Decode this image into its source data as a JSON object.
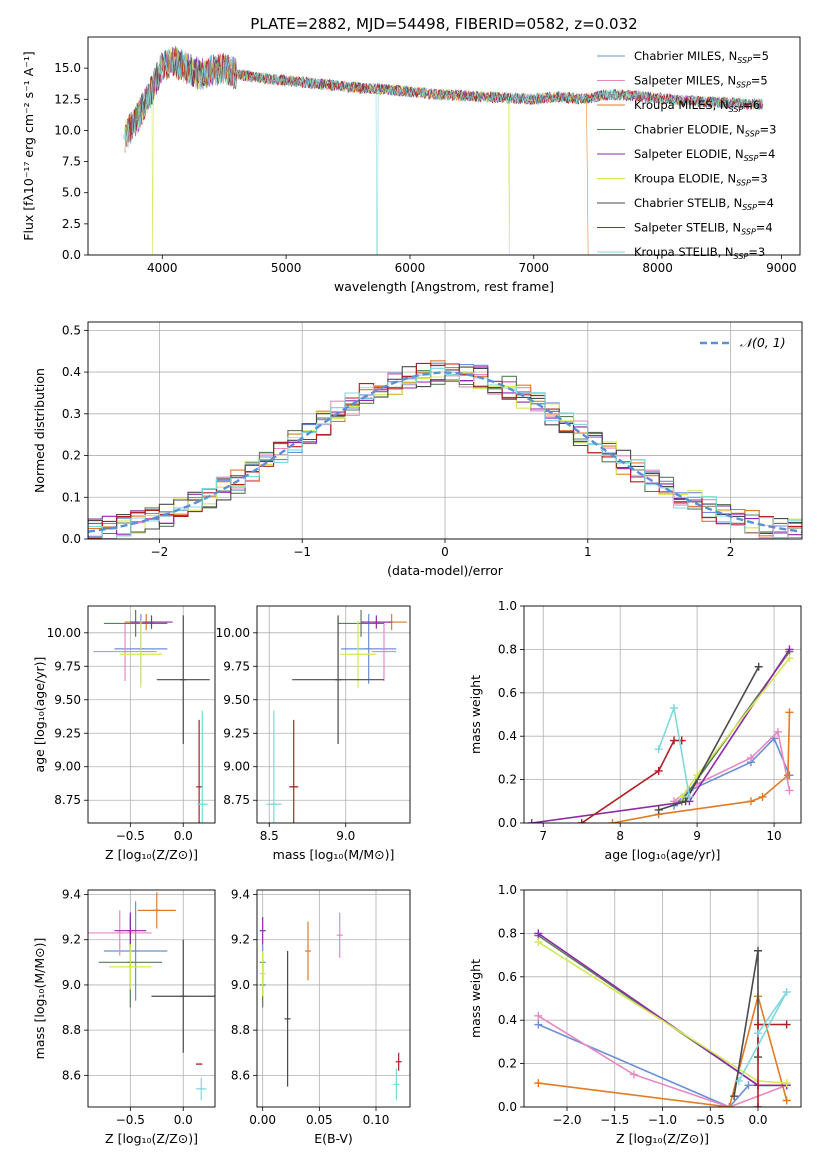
{
  "figure_title": "PLATE=2882, MJD=54498, FIBERID=0582, z=0.032",
  "models": [
    {
      "name": "Chabrier MILES",
      "nssp": "5",
      "color": "#6a8fd8"
    },
    {
      "name": "Salpeter MILES",
      "nssp": "5",
      "color": "#e689c0"
    },
    {
      "name": "Kroupa MILES",
      "nssp": "6",
      "color": "#e07b28"
    },
    {
      "name": "Chabrier ELODIE",
      "nssp": "3",
      "color": "#5a7d5a"
    },
    {
      "name": "Salpeter ELODIE",
      "nssp": "4",
      "color": "#8e2aa8"
    },
    {
      "name": "Kroupa ELODIE",
      "nssp": "3",
      "color": "#d4e85a"
    },
    {
      "name": "Chabrier STELIB",
      "nssp": "4",
      "color": "#4a4a4a"
    },
    {
      "name": "Salpeter STELIB",
      "nssp": "4",
      "color": "#b01f24"
    },
    {
      "name": "Kroupa STELIB",
      "nssp": "3",
      "color": "#7fd8dc"
    }
  ],
  "chart_data": [
    {
      "id": "spectrum",
      "type": "line",
      "xlabel": "wavelength [Angstrom, rest frame]",
      "ylabel": "Flux [fλ10⁻¹⁷ erg cm⁻² s⁻¹ A⁻¹]",
      "xlim": [
        3400,
        9150
      ],
      "ylim": [
        0,
        17.5
      ],
      "xticks": [
        4000,
        5000,
        6000,
        7000,
        8000,
        9000
      ],
      "yticks": [
        0.0,
        2.5,
        5.0,
        7.5,
        10.0,
        12.5,
        15.0
      ],
      "x": [
        3700,
        3800,
        3900,
        4000,
        4100,
        4200,
        4300,
        4400,
        4500,
        4600,
        4800,
        5000,
        5200,
        5400,
        5600,
        5800,
        6000,
        6200,
        6400,
        6600,
        6800,
        7000,
        7200,
        7400,
        7600,
        7800,
        8000,
        8200,
        8400,
        8600,
        8800
      ],
      "y": [
        9.5,
        11,
        13,
        15.2,
        15.5,
        15,
        14.5,
        14.8,
        15,
        14.5,
        14.2,
        14,
        13.8,
        13.6,
        13.4,
        13.3,
        13.1,
        12.9,
        12.8,
        12.7,
        12.6,
        12.5,
        12.7,
        12.5,
        12.9,
        12.8,
        12.6,
        12.4,
        12.3,
        12.2,
        12.1
      ],
      "grid": false,
      "legend_loc": "upper right"
    },
    {
      "id": "residuals",
      "type": "line",
      "xlabel": "(data-model)/error",
      "ylabel": "Normed distribution",
      "xlim": [
        -2.5,
        2.5
      ],
      "ylim": [
        0,
        0.52
      ],
      "xticks": [
        -2,
        -1,
        0,
        1,
        2
      ],
      "yticks": [
        0.0,
        0.1,
        0.2,
        0.3,
        0.4,
        0.5
      ],
      "reference_label": "𝒩(0, 1)",
      "reference": {
        "mean": 0,
        "sigma": 1,
        "norm": 0.3989
      },
      "grid": true,
      "legend_loc": "upper right"
    },
    {
      "id": "age_vs_z",
      "type": "scatter",
      "xlabel": "Z [log₁₀(Z/Z⊙)]",
      "ylabel": "age  [log₁₀(age/yr)]",
      "xlim": [
        -0.9,
        0.3
      ],
      "ylim": [
        8.58,
        10.2
      ],
      "xticks": [
        -0.5,
        0.0
      ],
      "yticks": [
        8.75,
        9.0,
        9.25,
        9.5,
        9.75,
        10.0
      ],
      "points": [
        {
          "m": 0,
          "x": -0.4,
          "y": 9.88,
          "xerr": 0.25,
          "yerr": 0.26
        },
        {
          "m": 1,
          "x": -0.55,
          "y": 9.86,
          "xerr": 0.3,
          "yerr": 0.22
        },
        {
          "m": 2,
          "x": -0.35,
          "y": 10.08,
          "xerr": 0.2,
          "yerr": 0.06
        },
        {
          "m": 3,
          "x": -0.45,
          "y": 10.07,
          "xerr": 0.3,
          "yerr": 0.1
        },
        {
          "m": 4,
          "x": -0.3,
          "y": 10.08,
          "xerr": 0.2,
          "yerr": 0.05
        },
        {
          "m": 5,
          "x": -0.4,
          "y": 9.84,
          "xerr": 0.2,
          "yerr": 0.25
        },
        {
          "m": 6,
          "x": 0.0,
          "y": 9.65,
          "xerr": 0.25,
          "yerr": 0.48
        },
        {
          "m": 7,
          "x": 0.15,
          "y": 8.85,
          "xerr": 0.0,
          "yerr": 0.5
        },
        {
          "m": 8,
          "x": 0.18,
          "y": 8.72,
          "xerr": 0.05,
          "yerr": 0.7
        }
      ]
    },
    {
      "id": "age_vs_mass",
      "type": "scatter",
      "xlabel": "mass [log₁₀(M/M⊙)]",
      "ylabel": "",
      "xlim": [
        8.42,
        9.42
      ],
      "ylim": [
        8.58,
        10.2
      ],
      "xticks": [
        8.5,
        9.0
      ],
      "yticks": [
        8.75,
        9.0,
        9.25,
        9.5,
        9.75,
        10.0
      ],
      "points": [
        {
          "m": 0,
          "x": 9.15,
          "y": 9.88,
          "xerr": 0.18,
          "yerr": 0.26
        },
        {
          "m": 1,
          "x": 9.25,
          "y": 9.86,
          "xerr": 0.08,
          "yerr": 0.22
        },
        {
          "m": 2,
          "x": 9.3,
          "y": 10.08,
          "xerr": 0.1,
          "yerr": 0.06
        },
        {
          "m": 3,
          "x": 9.1,
          "y": 10.07,
          "xerr": 0.15,
          "yerr": 0.1
        },
        {
          "m": 4,
          "x": 9.2,
          "y": 10.08,
          "xerr": 0.1,
          "yerr": 0.05
        },
        {
          "m": 5,
          "x": 9.08,
          "y": 9.84,
          "xerr": 0.12,
          "yerr": 0.25
        },
        {
          "m": 6,
          "x": 8.95,
          "y": 9.65,
          "xerr": 0.3,
          "yerr": 0.48
        },
        {
          "m": 7,
          "x": 8.66,
          "y": 8.85,
          "xerr": 0.03,
          "yerr": 0.5
        },
        {
          "m": 8,
          "x": 8.53,
          "y": 8.72,
          "xerr": 0.05,
          "yerr": 0.7
        }
      ]
    },
    {
      "id": "weight_vs_age",
      "type": "line",
      "xlabel": "age  [log₁₀(age/yr)]",
      "ylabel": "mass weight",
      "xlim": [
        6.75,
        10.35
      ],
      "ylim": [
        0,
        1.0
      ],
      "xticks": [
        7,
        8,
        9,
        10
      ],
      "yticks": [
        0.0,
        0.2,
        0.4,
        0.6,
        0.8,
        1.0
      ],
      "series": [
        {
          "m": 0,
          "x": [
            8.7,
            8.9,
            9.7,
            10.0,
            10.2
          ],
          "y": [
            0.08,
            0.15,
            0.28,
            0.39,
            0.22
          ]
        },
        {
          "m": 1,
          "x": [
            8.7,
            9.0,
            9.7,
            10.05,
            10.2
          ],
          "y": [
            0.1,
            0.18,
            0.3,
            0.42,
            0.15
          ]
        },
        {
          "m": 2,
          "x": [
            7.9,
            8.5,
            9.7,
            9.85,
            10.18,
            10.2
          ],
          "y": [
            0.0,
            0.04,
            0.1,
            0.12,
            0.22,
            0.51
          ]
        },
        {
          "m": 3,
          "x": [
            8.8,
            9.0,
            10.2
          ],
          "y": [
            0.1,
            0.2,
            0.79
          ]
        },
        {
          "m": 4,
          "x": [
            6.85,
            8.9,
            10.2
          ],
          "y": [
            0.0,
            0.1,
            0.8
          ]
        },
        {
          "m": 5,
          "x": [
            8.8,
            9.0,
            10.2
          ],
          "y": [
            0.12,
            0.22,
            0.76
          ]
        },
        {
          "m": 6,
          "x": [
            8.5,
            8.85,
            9.8
          ],
          "y": [
            0.06,
            0.1,
            0.72
          ]
        },
        {
          "m": 7,
          "x": [
            7.5,
            8.5,
            8.7,
            8.8
          ],
          "y": [
            0.0,
            0.24,
            0.38,
            0.38
          ]
        },
        {
          "m": 8,
          "x": [
            8.5,
            8.7,
            8.9
          ],
          "y": [
            0.34,
            0.53,
            0.12
          ]
        }
      ],
      "grid": true
    },
    {
      "id": "mass_vs_z",
      "type": "scatter",
      "xlabel": "Z [log₁₀(Z/Z⊙)]",
      "ylabel": "mass [log₁₀(M/M⊙)]",
      "xlim": [
        -0.9,
        0.3
      ],
      "ylim": [
        8.46,
        9.42
      ],
      "xticks": [
        -0.5,
        0.0
      ],
      "yticks": [
        8.6,
        8.8,
        9.0,
        9.2,
        9.4
      ],
      "points": [
        {
          "m": 0,
          "x": -0.45,
          "y": 9.15,
          "xerr": 0.3,
          "yerr": 0.22
        },
        {
          "m": 1,
          "x": -0.6,
          "y": 9.23,
          "xerr": 0.3,
          "yerr": 0.1
        },
        {
          "m": 2,
          "x": -0.25,
          "y": 9.33,
          "xerr": 0.18,
          "yerr": 0.08
        },
        {
          "m": 3,
          "x": -0.5,
          "y": 9.1,
          "xerr": 0.3,
          "yerr": 0.2
        },
        {
          "m": 4,
          "x": -0.5,
          "y": 9.24,
          "xerr": 0.15,
          "yerr": 0.08
        },
        {
          "m": 5,
          "x": -0.5,
          "y": 9.08,
          "xerr": 0.2,
          "yerr": 0.1
        },
        {
          "m": 6,
          "x": 0.0,
          "y": 8.95,
          "xerr": 0.3,
          "yerr": 0.25
        },
        {
          "m": 7,
          "x": 0.15,
          "y": 8.65,
          "xerr": 0.03,
          "yerr": 0.0
        },
        {
          "m": 8,
          "x": 0.17,
          "y": 8.54,
          "xerr": 0.05,
          "yerr": 0.05
        }
      ]
    },
    {
      "id": "mass_vs_ebv",
      "type": "scatter",
      "xlabel": "E(B-V)",
      "ylabel": "",
      "xlim": [
        -0.005,
        0.13
      ],
      "ylim": [
        8.46,
        9.42
      ],
      "xticks": [
        0.0,
        0.05,
        0.1
      ],
      "yticks": [
        8.6,
        8.8,
        9.0,
        9.2,
        9.4
      ],
      "points": [
        {
          "m": 0,
          "x": 0.0,
          "y": 9.1,
          "xerr": 0,
          "yerr": 0.08
        },
        {
          "m": 1,
          "x": 0.068,
          "y": 9.22,
          "xerr": 0,
          "yerr": 0.1
        },
        {
          "m": 2,
          "x": 0.04,
          "y": 9.15,
          "xerr": 0,
          "yerr": 0.13
        },
        {
          "m": 3,
          "x": 0.0,
          "y": 9.0,
          "xerr": 0,
          "yerr": 0.1
        },
        {
          "m": 4,
          "x": 0.0,
          "y": 9.24,
          "xerr": 0,
          "yerr": 0.06
        },
        {
          "m": 5,
          "x": 0.0,
          "y": 9.05,
          "xerr": 0,
          "yerr": 0.1
        },
        {
          "m": 6,
          "x": 0.022,
          "y": 8.85,
          "xerr": 0,
          "yerr": 0.3
        },
        {
          "m": 7,
          "x": 0.12,
          "y": 8.66,
          "xerr": 0,
          "yerr": 0.04
        },
        {
          "m": 8,
          "x": 0.118,
          "y": 8.56,
          "xerr": 0,
          "yerr": 0.07
        }
      ]
    },
    {
      "id": "weight_vs_z",
      "type": "line",
      "xlabel": "Z [log₁₀(Z/Z⊙)]",
      "ylabel": "mass weight",
      "xlim": [
        -2.45,
        0.45
      ],
      "ylim": [
        0,
        1.0
      ],
      "xticks": [
        -2.0,
        -1.5,
        -1.0,
        -0.5,
        0.0
      ],
      "yticks": [
        0.0,
        0.2,
        0.4,
        0.6,
        0.8,
        1.0
      ],
      "series": [
        {
          "m": 0,
          "x": [
            -2.3,
            -0.3,
            -0.1,
            0.0,
            0.3
          ],
          "y": [
            0.38,
            0.0,
            0.1,
            0.1,
            0.1
          ]
        },
        {
          "m": 1,
          "x": [
            -2.3,
            -1.3,
            -0.3,
            0.3
          ],
          "y": [
            0.42,
            0.15,
            0.0,
            0.1
          ]
        },
        {
          "m": 2,
          "x": [
            -2.3,
            -0.3,
            0.0,
            0.3
          ],
          "y": [
            0.11,
            0.0,
            0.51,
            0.03
          ]
        },
        {
          "m": 3,
          "x": [
            -2.3,
            0.0,
            0.3
          ],
          "y": [
            0.79,
            0.1,
            0.1
          ]
        },
        {
          "m": 4,
          "x": [
            -2.3,
            0.0,
            0.3
          ],
          "y": [
            0.8,
            0.1,
            0.1
          ]
        },
        {
          "m": 5,
          "x": [
            -2.3,
            0.0,
            0.3
          ],
          "y": [
            0.76,
            0.12,
            0.11
          ]
        },
        {
          "m": 6,
          "x": [
            -0.25,
            0.0,
            0.0
          ],
          "y": [
            0.05,
            0.72,
            0.23
          ]
        },
        {
          "m": 7,
          "x": [
            0.0,
            0.0,
            0.3
          ],
          "y": [
            0.0,
            0.38,
            0.38
          ]
        },
        {
          "m": 8,
          "x": [
            -0.2,
            0.3,
            0.0
          ],
          "y": [
            0.12,
            0.53,
            0.34
          ]
        }
      ],
      "grid": true
    }
  ]
}
